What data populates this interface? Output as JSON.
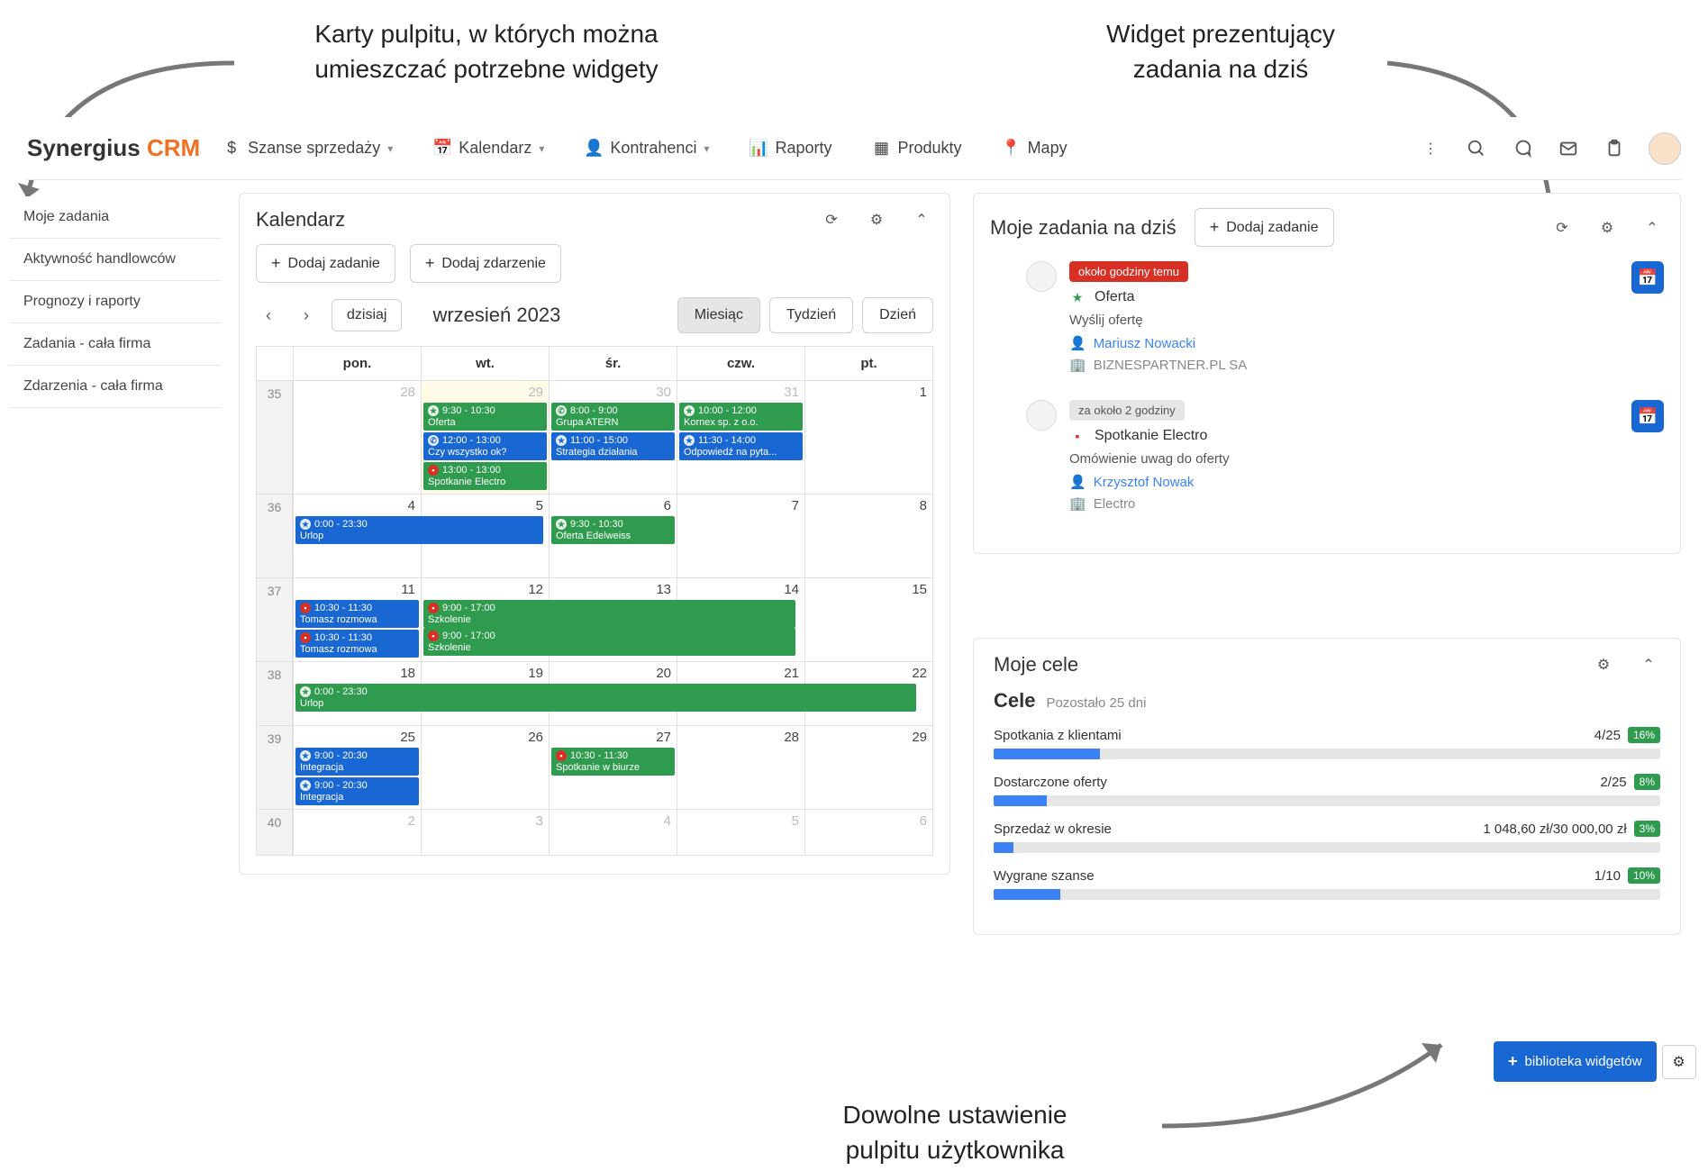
{
  "annotations": {
    "top_left": "Karty pulpitu, w których można\numieszczać potrzebne widgety",
    "top_right": "Widget prezentujący\nzadania na dziś",
    "bottom": "Dowolne ustawienie\npulpitu użytkownika"
  },
  "logo": {
    "brand": "Synergius",
    "suffix": "CRM"
  },
  "nav": [
    {
      "label": "Szanse sprzedaży",
      "icon": "$",
      "dropdown": true
    },
    {
      "label": "Kalendarz",
      "icon": "cal",
      "dropdown": true
    },
    {
      "label": "Kontrahenci",
      "icon": "person",
      "dropdown": true
    },
    {
      "label": "Raporty",
      "icon": "bars",
      "dropdown": false
    },
    {
      "label": "Produkty",
      "icon": "grid",
      "dropdown": false
    },
    {
      "label": "Mapy",
      "icon": "pin",
      "dropdown": false
    }
  ],
  "sidebar": [
    "Moje zadania",
    "Aktywność handlowców",
    "Prognozy i raporty",
    "Zadania - cała firma",
    "Zdarzenia - cała firma"
  ],
  "calendar": {
    "title": "Kalendarz",
    "add_task": "Dodaj zadanie",
    "add_event": "Dodaj zdarzenie",
    "today_btn": "dzisiaj",
    "month_label": "wrzesień 2023",
    "views": {
      "month": "Miesiąc",
      "week": "Tydzień",
      "day": "Dzień"
    },
    "days": [
      "pon.",
      "wt.",
      "śr.",
      "czw.",
      "pt."
    ],
    "colors": {
      "green": "#2e9b4f",
      "blue": "#1967d2",
      "red_icon": "#d93025"
    },
    "weeks": [
      {
        "wk": "35",
        "days": [
          "28",
          "29",
          "30",
          "31",
          "1"
        ],
        "dim": [
          0,
          1,
          2,
          3
        ],
        "events": [
          [],
          [
            {
              "time": "9:30 - 10:30",
              "label": "Oferta",
              "color": "green",
              "icon": "star"
            },
            {
              "time": "12:00 - 13:00",
              "label": "Czy wszystko ok?",
              "color": "blue",
              "icon": "phone"
            },
            {
              "time": "13:00 - 13:00",
              "label": "Spotkanie Electro",
              "color": "green",
              "icon": "case",
              "icon_bg": "red"
            }
          ],
          [
            {
              "time": "8:00 - 9:00",
              "label": "Grupa ATERN",
              "color": "green",
              "icon": "phone"
            },
            {
              "time": "11:00 - 15:00",
              "label": "Strategia działania",
              "color": "blue",
              "icon": "star"
            }
          ],
          [
            {
              "time": "10:00 - 12:00",
              "label": "Kornex sp. z o.o.",
              "color": "green",
              "icon": "star"
            },
            {
              "time": "11:30 - 14:00",
              "label": "Odpowiedź na pyta...",
              "color": "blue",
              "icon": "star"
            }
          ],
          []
        ]
      },
      {
        "wk": "36",
        "days": [
          "4",
          "5",
          "6",
          "7",
          "8"
        ],
        "dim": [],
        "events": [
          [
            {
              "time": "0:00 - 23:30",
              "label": "Urlop",
              "color": "blue",
              "icon": "star",
              "span": 2
            }
          ],
          [],
          [
            {
              "time": "9:30 - 10:30",
              "label": "Oferta Edelweiss",
              "color": "green",
              "icon": "star"
            }
          ],
          [],
          []
        ]
      },
      {
        "wk": "37",
        "days": [
          "11",
          "12",
          "13",
          "14",
          "15"
        ],
        "dim": [],
        "events": [
          [
            {
              "time": "10:30 - 11:30",
              "label": "Tomasz rozmowa",
              "color": "blue",
              "icon": "case",
              "icon_bg": "red"
            },
            {
              "time": "10:30 - 11:30",
              "label": "Tomasz rozmowa",
              "color": "blue",
              "icon": "case",
              "icon_bg": "red"
            }
          ],
          [
            {
              "time": "9:00 - 17:00",
              "label": "Szkolenie",
              "color": "green",
              "icon": "case",
              "icon_bg": "red",
              "span": 3
            },
            {
              "time": "9:00 - 17:00",
              "label": "Szkolenie",
              "color": "green",
              "icon": "case",
              "icon_bg": "red",
              "span": 3
            }
          ],
          [],
          [],
          []
        ]
      },
      {
        "wk": "38",
        "days": [
          "18",
          "19",
          "20",
          "21",
          "22"
        ],
        "dim": [],
        "events": [
          [
            {
              "time": "0:00 - 23:30",
              "label": "Urlop",
              "color": "green",
              "icon": "star",
              "span": 5
            }
          ],
          [],
          [],
          [],
          []
        ]
      },
      {
        "wk": "39",
        "days": [
          "25",
          "26",
          "27",
          "28",
          "29"
        ],
        "dim": [],
        "events": [
          [
            {
              "time": "9:00 - 20:30",
              "label": "Integracja",
              "color": "blue",
              "icon": "star"
            },
            {
              "time": "9:00 - 20:30",
              "label": "Integracja",
              "color": "blue",
              "icon": "star"
            }
          ],
          [],
          [
            {
              "time": "10:30 - 11:30",
              "label": "Spotkanie w biurze",
              "color": "green",
              "icon": "case",
              "icon_bg": "red"
            }
          ],
          [],
          []
        ]
      },
      {
        "wk": "40",
        "days": [
          "2",
          "3",
          "4",
          "5",
          "6"
        ],
        "dim": [
          0,
          1,
          2,
          3,
          4
        ],
        "events": [
          [],
          [],
          [],
          [],
          []
        ]
      }
    ]
  },
  "tasks": {
    "title": "Moje zadania na dziś",
    "add": "Dodaj zadanie",
    "items": [
      {
        "badge": "około godziny temu",
        "badge_color": "#d93025",
        "icon": "star",
        "icon_color": "#2e9b4f",
        "title": "Oferta",
        "line": "Wyślij ofertę",
        "person": "Mariusz Nowacki",
        "company": "BIZNESPARTNER.PL SA"
      },
      {
        "badge": "za około 2 godziny",
        "badge_color": "#e6e6e6",
        "badge_text": "#555",
        "icon": "case",
        "icon_color": "#d93025",
        "title": "Spotkanie Electro",
        "line": "Omówienie uwag do oferty",
        "person": "Krzysztof Nowak",
        "company": "Electro"
      }
    ]
  },
  "goals": {
    "title": "Moje cele",
    "heading": "Cele",
    "sub": "Pozostało 25 dni",
    "items": [
      {
        "label": "Spotkania z klientami",
        "value": "4/25",
        "pct": "16%",
        "fill": 16
      },
      {
        "label": "Dostarczone oferty",
        "value": "2/25",
        "pct": "8%",
        "fill": 8
      },
      {
        "label": "Sprzedaż w okresie",
        "value": "1 048,60 zł/30 000,00 zł",
        "pct": "3%",
        "fill": 3
      },
      {
        "label": "Wygrane szanse",
        "value": "1/10",
        "pct": "10%",
        "fill": 10
      }
    ]
  },
  "library_btn": "biblioteka widgetów"
}
